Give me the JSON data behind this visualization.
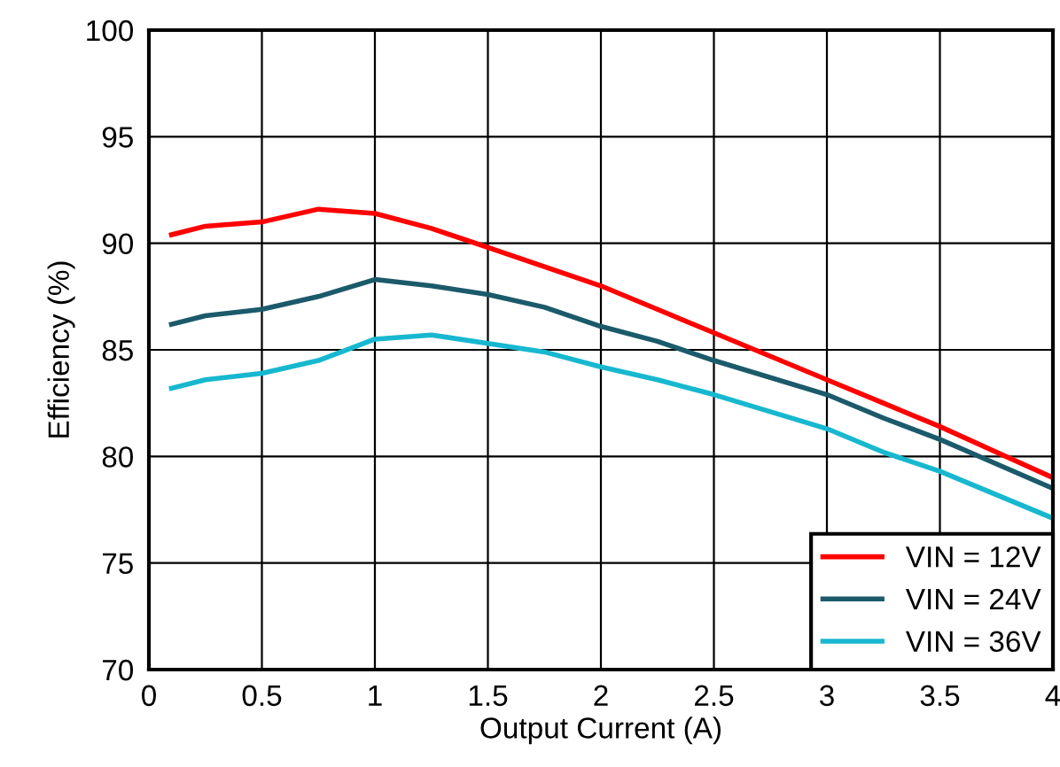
{
  "chart_data": {
    "type": "line",
    "xlabel": "Output Current (A)",
    "ylabel": "Efficiency (%)",
    "xlim": [
      0,
      4
    ],
    "xticks": [
      0,
      0.5,
      1,
      1.5,
      2,
      2.5,
      3,
      3.5,
      4
    ],
    "ylim": [
      70,
      100
    ],
    "yticks": [
      70,
      75,
      80,
      85,
      90,
      95,
      100
    ],
    "grid": true,
    "legend": "bottom right",
    "marker": "none",
    "line_style": "solid",
    "x": [
      0.1,
      0.25,
      0.5,
      0.75,
      1.0,
      1.25,
      1.5,
      1.75,
      2.0,
      2.25,
      2.5,
      3.0,
      3.25,
      3.5,
      4.0
    ],
    "series": [
      {
        "name": "VIN = 12V",
        "color": "#ff0000",
        "values": [
          90.4,
          90.8,
          91.0,
          91.6,
          91.4,
          90.7,
          89.8,
          88.9,
          88.0,
          86.9,
          85.8,
          83.6,
          82.5,
          81.4,
          79.0
        ]
      },
      {
        "name": "VIN = 24V",
        "color": "#1b5a6b",
        "values": [
          86.2,
          86.6,
          86.9,
          87.5,
          88.3,
          88.0,
          87.6,
          87.0,
          86.1,
          85.4,
          84.5,
          82.9,
          81.8,
          80.8,
          78.5
        ]
      },
      {
        "name": "VIN = 36V",
        "color": "#17b8cf",
        "values": [
          83.2,
          83.6,
          83.9,
          84.5,
          85.5,
          85.7,
          85.3,
          84.9,
          84.2,
          83.6,
          82.9,
          81.3,
          80.2,
          79.3,
          77.1
        ]
      }
    ]
  }
}
